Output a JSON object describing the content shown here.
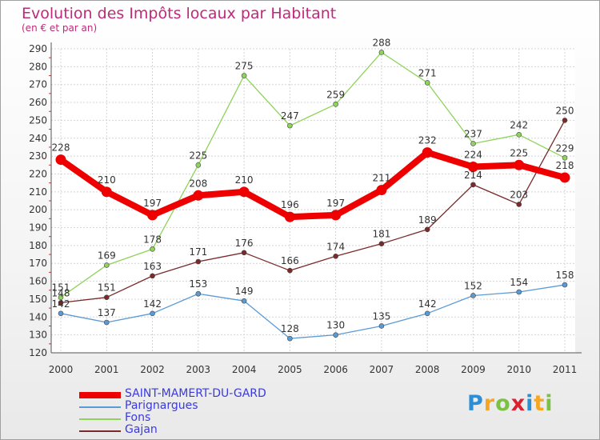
{
  "header": {
    "title": "Evolution des Impôts locaux par Habitant",
    "subtitle": "(en € et par an)"
  },
  "logo": {
    "text": "Proxiti",
    "letter_colors": [
      "#2a8fd6",
      "#f5a623",
      "#7cc242",
      "#d9212f",
      "#2a8fd6",
      "#f5a623",
      "#7cc242"
    ]
  },
  "chart_data": {
    "type": "line",
    "title": "Evolution des Impôts locaux par Habitant",
    "subtitle": "(en € et par an)",
    "xlabel": "",
    "ylabel": "",
    "x": [
      "2000",
      "2001",
      "2002",
      "2003",
      "2004",
      "2005",
      "2006",
      "2007",
      "2008",
      "2009",
      "2010",
      "2011"
    ],
    "ylim": [
      120,
      290
    ],
    "yticks": [
      120,
      130,
      140,
      150,
      160,
      170,
      180,
      190,
      200,
      210,
      220,
      230,
      240,
      250,
      260,
      270,
      280,
      290
    ],
    "grid": true,
    "legend_position": "bottom-left",
    "series": [
      {
        "name": "SAINT-MAMERT-DU-GARD",
        "color": "#ee0000",
        "emphasis": true,
        "values": [
          228,
          210,
          197,
          208,
          210,
          196,
          197,
          211,
          232,
          224,
          225,
          218
        ]
      },
      {
        "name": "Parignargues",
        "color": "#5b9bd5",
        "emphasis": false,
        "values": [
          142,
          137,
          142,
          153,
          149,
          128,
          130,
          135,
          142,
          152,
          154,
          158
        ]
      },
      {
        "name": "Fons",
        "color": "#8ed35a",
        "emphasis": false,
        "values": [
          151,
          169,
          178,
          225,
          275,
          247,
          259,
          288,
          271,
          237,
          242,
          229
        ]
      },
      {
        "name": "Gajan",
        "color": "#7a2a2a",
        "emphasis": false,
        "values": [
          148,
          151,
          163,
          171,
          176,
          166,
          174,
          181,
          189,
          214,
          203,
          250
        ]
      }
    ]
  }
}
